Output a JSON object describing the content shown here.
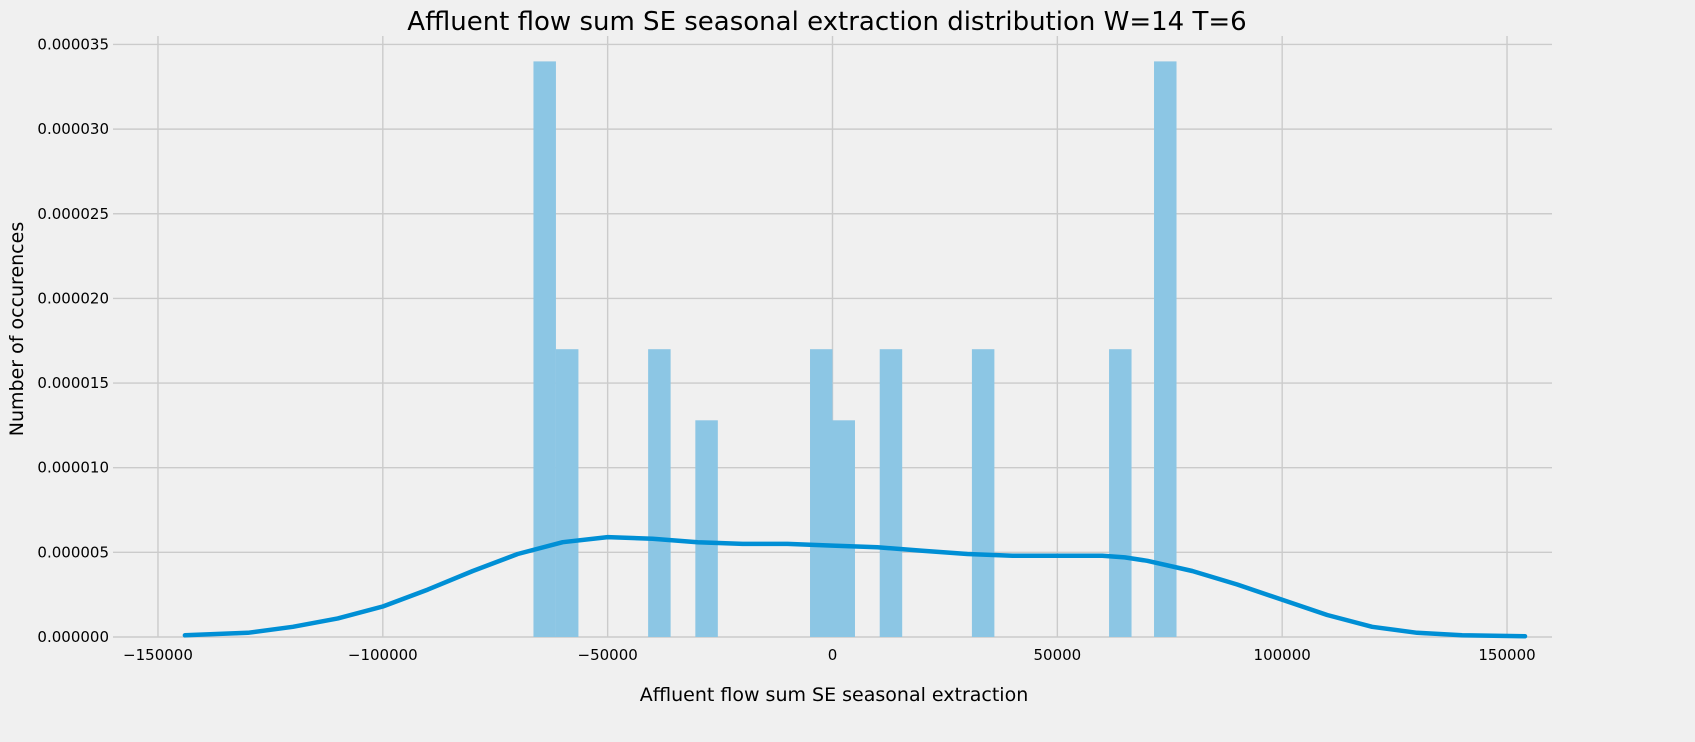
{
  "chart_data": {
    "type": "bar",
    "title": "Affluent flow sum SE seasonal extraction distribution W=14 T=6",
    "xlabel": "Affluent flow sum SE seasonal extraction",
    "ylabel": "Number of occurences",
    "xlim": [
      -160000,
      160000
    ],
    "ylim": [
      0,
      3.55e-05
    ],
    "xticks": [
      -150000,
      -100000,
      -50000,
      0,
      50000,
      100000,
      150000
    ],
    "xtick_labels": [
      "−150000",
      "−100000",
      "−50000",
      "0",
      "50000",
      "100000",
      "150000"
    ],
    "yticks": [
      0,
      5e-06,
      1e-05,
      1.5e-05,
      2e-05,
      2.5e-05,
      3e-05,
      3.5e-05
    ],
    "ytick_labels": [
      "0.000000",
      "0.000005",
      "0.000010",
      "0.000015",
      "0.000020",
      "0.000025",
      "0.000030",
      "0.000035"
    ],
    "grid": true,
    "histogram": {
      "bins": [
        {
          "x0": -66500,
          "x1": -61500,
          "value": 3.4e-05
        },
        {
          "x0": -61500,
          "x1": -56500,
          "value": 1.7e-05
        },
        {
          "x0": -41000,
          "x1": -36000,
          "value": 1.7e-05
        },
        {
          "x0": -30500,
          "x1": -25500,
          "value": 1.28e-05
        },
        {
          "x0": -5000,
          "x1": 0,
          "value": 1.7e-05
        },
        {
          "x0": 0,
          "x1": 5000,
          "value": 1.28e-05
        },
        {
          "x0": 10500,
          "x1": 15500,
          "value": 1.7e-05
        },
        {
          "x0": 31000,
          "x1": 36000,
          "value": 1.7e-05
        },
        {
          "x0": 61500,
          "x1": 66500,
          "value": 1.7e-05
        },
        {
          "x0": 71500,
          "x1": 76500,
          "value": 3.4e-05
        }
      ],
      "color": "#8cc6e4"
    },
    "kde": {
      "color": "#008fd5",
      "x": [
        -144000,
        -130000,
        -120000,
        -110000,
        -100000,
        -90000,
        -80000,
        -70000,
        -60000,
        -50000,
        -40000,
        -30000,
        -20000,
        -10000,
        0,
        10000,
        20000,
        30000,
        40000,
        50000,
        60000,
        65000,
        70000,
        80000,
        90000,
        100000,
        110000,
        120000,
        130000,
        140000,
        154000
      ],
      "y": [
        1e-07,
        2.5e-07,
        6e-07,
        1.1e-06,
        1.8e-06,
        2.8e-06,
        3.9e-06,
        4.9e-06,
        5.6e-06,
        5.9e-06,
        5.8e-06,
        5.6e-06,
        5.5e-06,
        5.5e-06,
        5.4e-06,
        5.3e-06,
        5.1e-06,
        4.9e-06,
        4.8e-06,
        4.8e-06,
        4.8e-06,
        4.7e-06,
        4.5e-06,
        3.9e-06,
        3.1e-06,
        2.2e-06,
        1.3e-06,
        6e-07,
        2.5e-07,
        1e-07,
        5e-08
      ]
    }
  }
}
